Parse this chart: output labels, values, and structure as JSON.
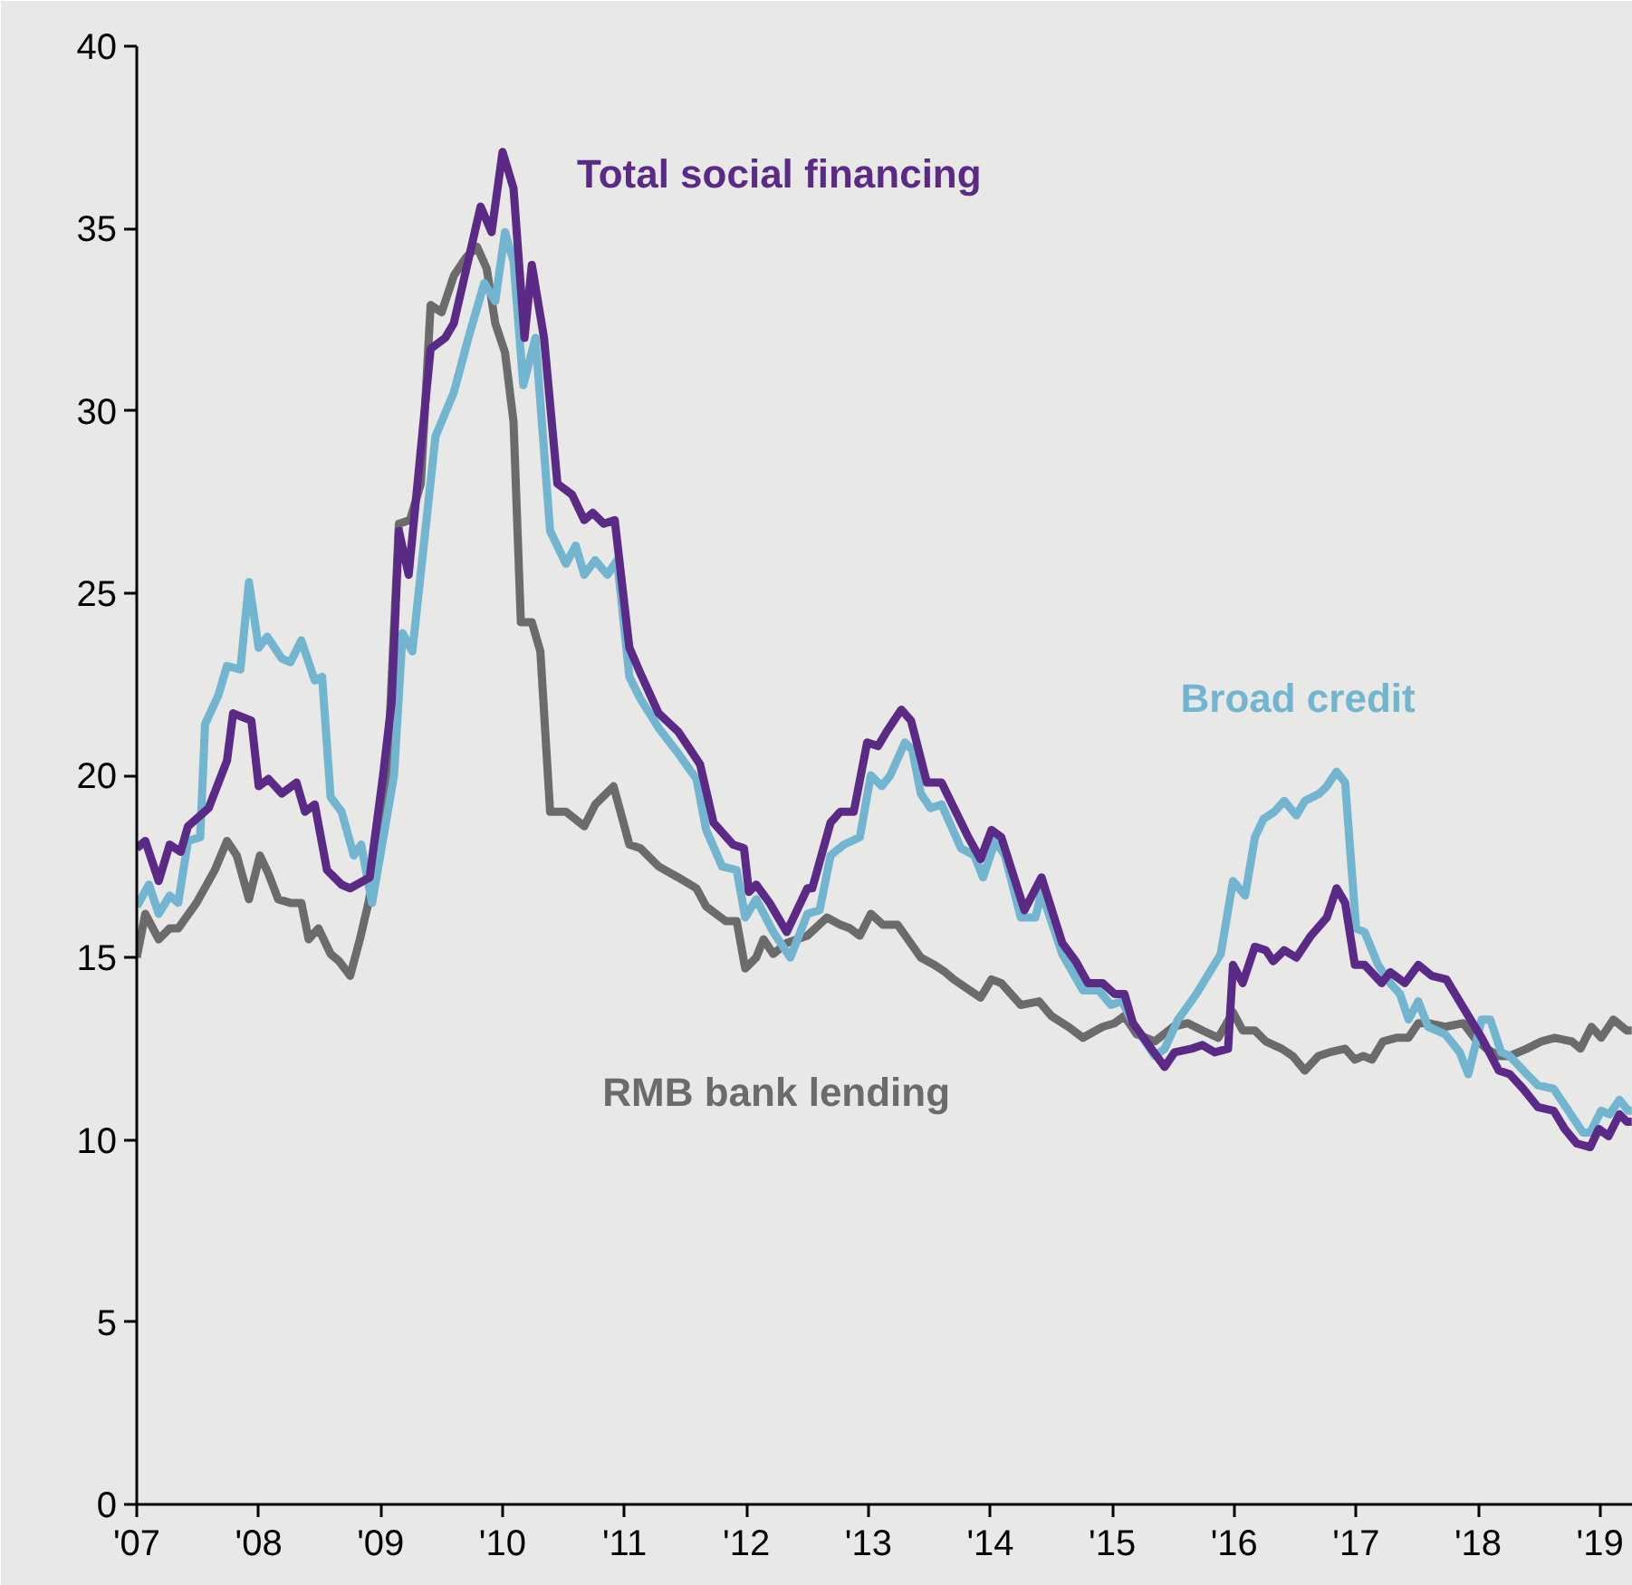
{
  "chart_data": {
    "type": "line",
    "xlim": [
      2007,
      2019.27
    ],
    "ylim": [
      0,
      40
    ],
    "xticks": [
      {
        "value": 2007,
        "label": "'07"
      },
      {
        "value": 2008,
        "label": "'08"
      },
      {
        "value": 2009,
        "label": "'09"
      },
      {
        "value": 2010,
        "label": "'10"
      },
      {
        "value": 2011,
        "label": "'11"
      },
      {
        "value": 2012,
        "label": "'12"
      },
      {
        "value": 2013,
        "label": "'13"
      },
      {
        "value": 2014,
        "label": "'14"
      },
      {
        "value": 2015,
        "label": "'15"
      },
      {
        "value": 2016,
        "label": "'16"
      },
      {
        "value": 2017,
        "label": "'17"
      },
      {
        "value": 2018,
        "label": "'18"
      },
      {
        "value": 2019,
        "label": "'19"
      }
    ],
    "yticks": [
      0,
      5,
      10,
      15,
      20,
      25,
      30,
      35,
      40
    ],
    "legend": false,
    "line_style": "solid",
    "marker": "none",
    "series": [
      {
        "name": "RMB bank lending",
        "color": "#6b6b6b",
        "x": [
          2007.0,
          2007.07,
          2007.18,
          2007.27,
          2007.34,
          2007.49,
          2007.64,
          2007.74,
          2007.82,
          2007.92,
          2008.01,
          2008.08,
          2008.16,
          2008.26,
          2008.35,
          2008.41,
          2008.49,
          2008.59,
          2008.66,
          2008.75,
          2008.83,
          2008.9,
          2009.04,
          2009.15,
          2009.24,
          2009.33,
          2009.41,
          2009.5,
          2009.6,
          2009.7,
          2009.79,
          2009.87,
          2009.94,
          2010.02,
          2010.09,
          2010.15,
          2010.24,
          2010.31,
          2010.39,
          2010.52,
          2010.67,
          2010.76,
          2010.91,
          2011.04,
          2011.13,
          2011.28,
          2011.44,
          2011.59,
          2011.67,
          2011.83,
          2011.92,
          2011.99,
          2012.08,
          2012.14,
          2012.22,
          2012.33,
          2012.5,
          2012.66,
          2012.77,
          2012.85,
          2012.93,
          2013.02,
          2013.12,
          2013.24,
          2013.43,
          2013.54,
          2013.63,
          2013.7,
          2013.92,
          2014.01,
          2014.09,
          2014.25,
          2014.4,
          2014.5,
          2014.64,
          2014.76,
          2014.92,
          2015.02,
          2015.1,
          2015.2,
          2015.35,
          2015.5,
          2015.62,
          2015.74,
          2015.87,
          2015.99,
          2016.07,
          2016.17,
          2016.26,
          2016.39,
          2016.48,
          2016.58,
          2016.69,
          2016.78,
          2016.91,
          2016.99,
          2017.06,
          2017.13,
          2017.22,
          2017.33,
          2017.43,
          2017.51,
          2017.59,
          2017.73,
          2017.88,
          2017.97,
          2018.07,
          2018.17,
          2018.26,
          2018.4,
          2018.52,
          2018.63,
          2018.77,
          2018.84,
          2018.93,
          2019.01,
          2019.11,
          2019.22,
          2019.26
        ],
        "values": [
          15.0,
          16.2,
          15.5,
          15.8,
          15.8,
          16.5,
          17.4,
          18.2,
          17.8,
          16.6,
          17.8,
          17.3,
          16.6,
          16.5,
          16.5,
          15.5,
          15.8,
          15.1,
          14.9,
          14.5,
          15.5,
          16.5,
          19.0,
          26.9,
          27.0,
          28.0,
          32.9,
          32.7,
          33.7,
          34.2,
          34.5,
          33.9,
          32.4,
          31.6,
          29.7,
          24.2,
          24.2,
          23.4,
          19.0,
          19.0,
          18.6,
          19.2,
          19.7,
          18.1,
          18.0,
          17.5,
          17.2,
          16.9,
          16.4,
          16.0,
          16.0,
          14.7,
          15.0,
          15.5,
          15.1,
          15.4,
          15.6,
          16.1,
          15.9,
          15.8,
          15.6,
          16.2,
          15.9,
          15.9,
          15.0,
          14.8,
          14.6,
          14.4,
          13.9,
          14.4,
          14.3,
          13.7,
          13.8,
          13.4,
          13.1,
          12.8,
          13.1,
          13.2,
          13.4,
          12.9,
          12.7,
          13.1,
          13.2,
          13.0,
          12.8,
          13.5,
          13.0,
          13.0,
          12.7,
          12.5,
          12.3,
          11.9,
          12.3,
          12.4,
          12.5,
          12.2,
          12.3,
          12.2,
          12.7,
          12.8,
          12.8,
          13.2,
          13.2,
          13.1,
          13.2,
          12.8,
          12.5,
          12.3,
          12.3,
          12.5,
          12.7,
          12.8,
          12.7,
          12.5,
          13.1,
          12.8,
          13.3,
          13.0,
          13.0
        ]
      },
      {
        "name": "Broad credit",
        "color": "#72b5d0",
        "x": [
          2007.0,
          2007.1,
          2007.18,
          2007.27,
          2007.34,
          2007.42,
          2007.52,
          2007.56,
          2007.67,
          2007.74,
          2007.85,
          2007.92,
          2008.0,
          2008.07,
          2008.19,
          2008.26,
          2008.35,
          2008.46,
          2008.52,
          2008.59,
          2008.68,
          2008.78,
          2008.84,
          2008.93,
          2009.11,
          2009.18,
          2009.26,
          2009.45,
          2009.6,
          2009.72,
          2009.85,
          2009.94,
          2010.02,
          2010.09,
          2010.17,
          2010.27,
          2010.39,
          2010.52,
          2010.6,
          2010.67,
          2010.76,
          2010.86,
          2010.94,
          2011.04,
          2011.13,
          2011.28,
          2011.44,
          2011.59,
          2011.67,
          2011.8,
          2011.92,
          2011.99,
          2012.08,
          2012.22,
          2012.36,
          2012.5,
          2012.6,
          2012.69,
          2012.8,
          2012.93,
          2013.02,
          2013.11,
          2013.18,
          2013.3,
          2013.36,
          2013.43,
          2013.51,
          2013.6,
          2013.76,
          2013.87,
          2013.94,
          2014.04,
          2014.12,
          2014.25,
          2014.37,
          2014.42,
          2014.59,
          2014.76,
          2014.89,
          2014.99,
          2015.08,
          2015.17,
          2015.35,
          2015.43,
          2015.54,
          2015.69,
          2015.89,
          2015.99,
          2016.09,
          2016.17,
          2016.24,
          2016.33,
          2016.41,
          2016.51,
          2016.58,
          2016.7,
          2016.76,
          2016.84,
          2016.91,
          2017.0,
          2017.07,
          2017.18,
          2017.28,
          2017.36,
          2017.43,
          2017.51,
          2017.59,
          2017.73,
          2017.85,
          2017.92,
          2018.03,
          2018.1,
          2018.19,
          2018.26,
          2018.4,
          2018.49,
          2018.62,
          2018.74,
          2018.86,
          2018.92,
          2019.01,
          2019.08,
          2019.16,
          2019.23,
          2019.26
        ],
        "values": [
          16.4,
          17.0,
          16.2,
          16.7,
          16.5,
          18.2,
          18.3,
          21.4,
          22.2,
          23.0,
          22.9,
          25.3,
          23.5,
          23.8,
          23.2,
          23.1,
          23.7,
          22.6,
          22.7,
          19.4,
          19.0,
          17.8,
          18.1,
          16.5,
          20.0,
          23.9,
          23.4,
          29.3,
          30.5,
          32.0,
          33.5,
          33.0,
          34.9,
          34.1,
          30.7,
          32.0,
          26.7,
          25.8,
          26.3,
          25.5,
          25.9,
          25.5,
          25.9,
          22.7,
          22.1,
          21.3,
          20.6,
          19.9,
          18.5,
          17.5,
          17.4,
          16.1,
          16.6,
          15.7,
          15.0,
          16.2,
          16.3,
          17.8,
          18.1,
          18.3,
          20.0,
          19.7,
          20.0,
          20.9,
          20.7,
          19.5,
          19.1,
          19.2,
          18.0,
          17.8,
          17.2,
          18.2,
          17.8,
          16.1,
          16.1,
          16.8,
          15.1,
          14.1,
          14.1,
          13.7,
          13.8,
          13.2,
          12.3,
          12.5,
          13.3,
          14.0,
          15.1,
          17.1,
          16.7,
          18.3,
          18.8,
          19.0,
          19.3,
          18.9,
          19.3,
          19.5,
          19.7,
          20.1,
          19.8,
          15.8,
          15.7,
          14.8,
          14.3,
          14.0,
          13.3,
          13.8,
          13.1,
          12.9,
          12.4,
          11.8,
          13.3,
          13.3,
          12.4,
          12.3,
          11.8,
          11.5,
          11.4,
          10.8,
          10.2,
          10.2,
          10.8,
          10.7,
          11.1,
          10.8,
          10.8
        ]
      },
      {
        "name": "Total social financing",
        "color": "#5b2a86",
        "x": [
          2007.0,
          2007.07,
          2007.18,
          2007.27,
          2007.36,
          2007.42,
          2007.59,
          2007.74,
          2007.79,
          2007.94,
          2008.0,
          2008.08,
          2008.19,
          2008.31,
          2008.38,
          2008.46,
          2008.56,
          2008.68,
          2008.75,
          2008.91,
          2009.02,
          2009.09,
          2009.15,
          2009.23,
          2009.41,
          2009.53,
          2009.6,
          2009.82,
          2009.91,
          2010.0,
          2010.09,
          2010.18,
          2010.24,
          2010.34,
          2010.45,
          2010.57,
          2010.67,
          2010.74,
          2010.83,
          2010.92,
          2011.04,
          2011.13,
          2011.28,
          2011.44,
          2011.62,
          2011.73,
          2011.89,
          2011.98,
          2012.02,
          2012.08,
          2012.19,
          2012.33,
          2012.5,
          2012.54,
          2012.69,
          2012.77,
          2012.88,
          2012.99,
          2013.08,
          2013.15,
          2013.27,
          2013.35,
          2013.48,
          2013.6,
          2013.82,
          2013.92,
          2014.01,
          2014.09,
          2014.28,
          2014.42,
          2014.59,
          2014.7,
          2014.8,
          2014.92,
          2015.02,
          2015.1,
          2015.17,
          2015.32,
          2015.43,
          2015.51,
          2015.65,
          2015.74,
          2015.84,
          2015.95,
          2015.99,
          2016.07,
          2016.17,
          2016.26,
          2016.32,
          2016.41,
          2016.51,
          2016.63,
          2016.76,
          2016.84,
          2016.91,
          2016.99,
          2017.07,
          2017.21,
          2017.28,
          2017.4,
          2017.51,
          2017.62,
          2017.74,
          2017.92,
          2018.03,
          2018.17,
          2018.26,
          2018.37,
          2018.49,
          2018.62,
          2018.71,
          2018.81,
          2018.92,
          2018.99,
          2019.07,
          2019.16,
          2019.22,
          2019.26
        ],
        "values": [
          18.0,
          18.2,
          17.1,
          18.1,
          17.9,
          18.6,
          19.1,
          20.4,
          21.7,
          21.5,
          19.7,
          19.9,
          19.5,
          19.8,
          19.0,
          19.2,
          17.4,
          17.0,
          16.9,
          17.2,
          20.0,
          22.0,
          26.7,
          25.5,
          31.7,
          32.0,
          32.4,
          35.6,
          34.9,
          37.1,
          36.1,
          32.0,
          34.0,
          32.0,
          28.0,
          27.7,
          27.0,
          27.2,
          26.9,
          27.0,
          23.5,
          22.8,
          21.7,
          21.2,
          20.3,
          18.7,
          18.1,
          18.0,
          16.8,
          17.0,
          16.5,
          15.7,
          16.9,
          16.9,
          18.7,
          19.0,
          19.0,
          20.9,
          20.8,
          21.2,
          21.8,
          21.5,
          19.8,
          19.8,
          18.3,
          17.7,
          18.5,
          18.3,
          16.3,
          17.2,
          15.4,
          14.9,
          14.3,
          14.3,
          14.0,
          14.0,
          13.2,
          12.5,
          12.0,
          12.4,
          12.5,
          12.6,
          12.4,
          12.5,
          14.8,
          14.3,
          15.3,
          15.2,
          14.9,
          15.2,
          15.0,
          15.6,
          16.1,
          16.9,
          16.5,
          14.8,
          14.8,
          14.3,
          14.6,
          14.3,
          14.8,
          14.5,
          14.4,
          13.4,
          12.8,
          11.9,
          11.8,
          11.4,
          10.9,
          10.8,
          10.3,
          9.9,
          9.8,
          10.3,
          10.1,
          10.7,
          10.5,
          10.5
        ]
      }
    ]
  }
}
